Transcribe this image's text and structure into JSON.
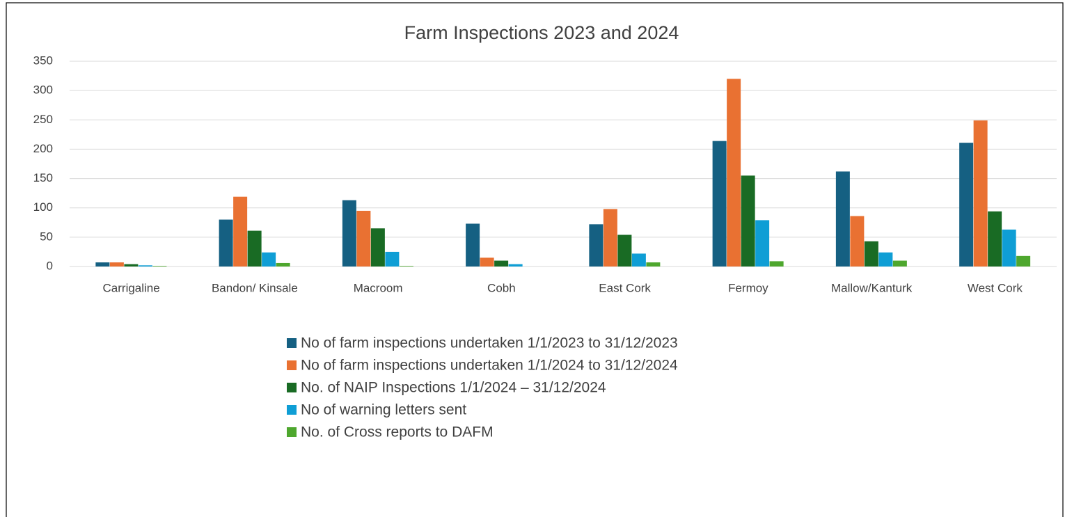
{
  "chart_data": {
    "type": "bar",
    "title": "Farm Inspections 2023 and 2024",
    "categories": [
      "Carrigaline",
      "Bandon/ Kinsale",
      "Macroom",
      "Cobh",
      "East Cork",
      "Fermoy",
      "Mallow/Kanturk",
      "West Cork"
    ],
    "series": [
      {
        "name": "No of farm inspections undertaken 1/1/2023 to 31/12/2023",
        "color": "#156082",
        "values": [
          7,
          80,
          113,
          73,
          72,
          214,
          162,
          211
        ]
      },
      {
        "name": "No of farm inspections undertaken 1/1/2024 to 31/12/2024",
        "color": "#e97132",
        "values": [
          7,
          119,
          95,
          15,
          98,
          320,
          86,
          249
        ]
      },
      {
        "name": "No. of NAIP Inspections 1/1/2024 – 31/12/2024",
        "color": "#196b24",
        "values": [
          4,
          61,
          65,
          10,
          54,
          155,
          43,
          94
        ]
      },
      {
        "name": "No of warning letters sent",
        "color": "#0f9ed5",
        "values": [
          2,
          24,
          25,
          4,
          22,
          79,
          24,
          63
        ]
      },
      {
        "name": "No. of Cross reports to DAFM",
        "color": "#4ea72e",
        "values": [
          1,
          6,
          1,
          0,
          7,
          9,
          10,
          18
        ]
      }
    ],
    "ylim": [
      0,
      350
    ],
    "yticks": [
      0,
      50,
      100,
      150,
      200,
      250,
      300,
      350
    ],
    "grid": true
  }
}
